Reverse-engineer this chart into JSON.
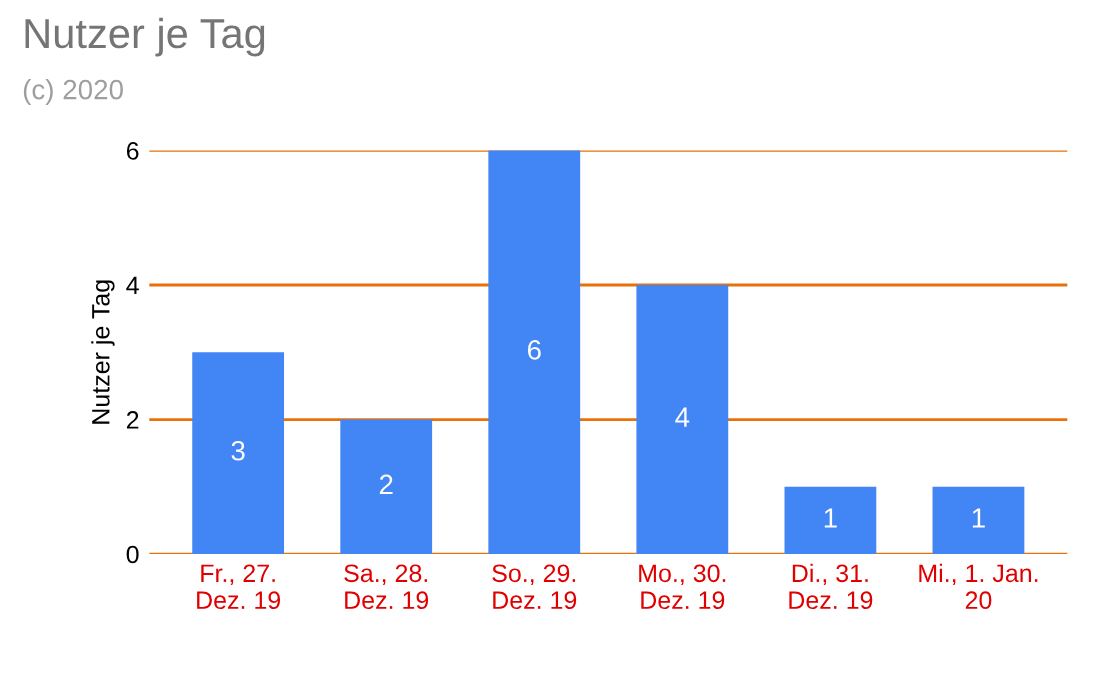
{
  "chart_data": {
    "type": "bar",
    "title": "Nutzer je Tag",
    "subtitle": "(c) 2020",
    "ylabel": "Nutzer je Tag",
    "categories": [
      "Fr., 27. Dez. 19",
      "Sa., 28. Dez. 19",
      "So., 29. Dez. 19",
      "Mo., 30. Dez. 19",
      "Di., 31. Dez. 19",
      "Mi., 1. Jan. 20"
    ],
    "values": [
      3,
      2,
      6,
      4,
      1,
      1
    ],
    "color": "#4285f4",
    "ylim": [
      0,
      6
    ],
    "yticks": [
      0,
      2,
      4,
      6
    ],
    "grid": "y",
    "data_labels": true
  }
}
